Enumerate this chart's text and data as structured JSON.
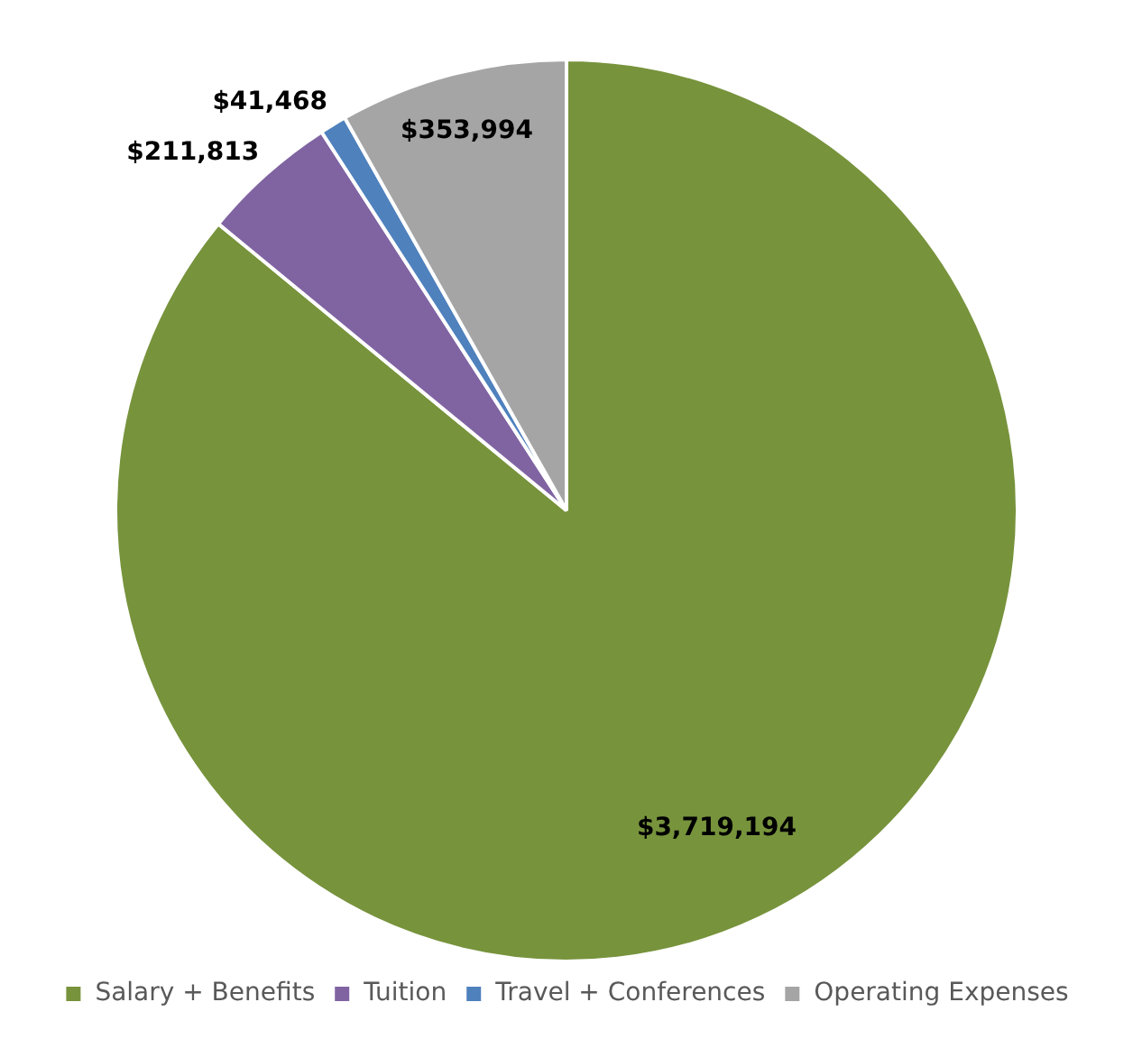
{
  "chart_data": {
    "type": "pie",
    "categories": [
      "Salary + Benefits",
      "Tuition",
      "Travel + Conferences",
      "Operating Expenses"
    ],
    "values": [
      3719194,
      211813,
      41468,
      353994
    ],
    "colors": [
      "#77933c",
      "#8064a2",
      "#4f81bd",
      "#a5a5a5"
    ],
    "value_labels": [
      "$3,719,194",
      "$211,813",
      "$41,468",
      "$353,994"
    ],
    "legend": "bottom"
  }
}
